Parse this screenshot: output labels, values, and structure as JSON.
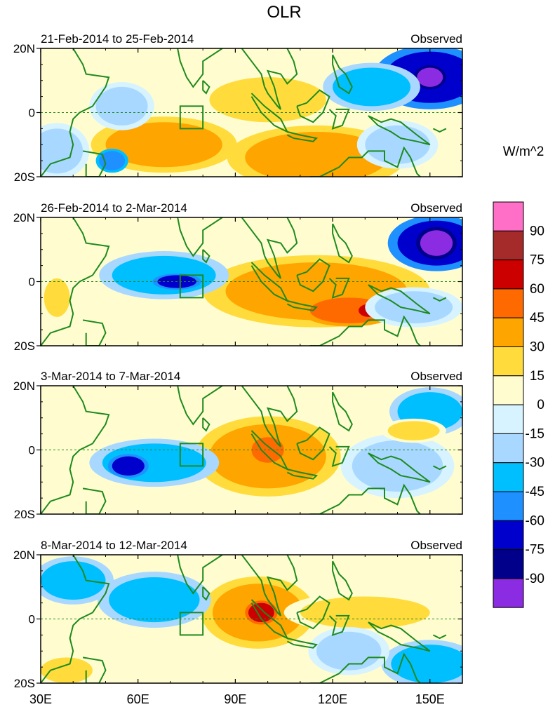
{
  "title": "OLR",
  "colors": {
    "land": "#1e8a1e",
    "levels": [
      "#8b2be2",
      "#00008b",
      "#0000cd",
      "#1e90ff",
      "#00bfff",
      "#a8d8ff",
      "#d6f3ff",
      "#fffdd0",
      "#ffdc3c",
      "#ffa500",
      "#ff6a00",
      "#cd0000",
      "#a52a2a",
      "#ff6ec7"
    ]
  },
  "chart_data": {
    "type": "heatmap",
    "variable": "OLR anomaly",
    "xlim": [
      30,
      160
    ],
    "ylim": [
      -20,
      20
    ],
    "x_ticks": [
      {
        "v": 30,
        "label": "30E"
      },
      {
        "v": 60,
        "label": "60E"
      },
      {
        "v": 90,
        "label": "90E"
      },
      {
        "v": 120,
        "label": "120E"
      },
      {
        "v": 150,
        "label": "150E"
      }
    ],
    "y_ticks": [
      {
        "v": 20,
        "label": "20N"
      },
      {
        "v": 0,
        "label": "0"
      },
      {
        "v": -20,
        "label": "20S"
      }
    ],
    "box": {
      "lon": [
        73,
        80
      ],
      "lat": [
        -5,
        2
      ]
    },
    "colorbar": {
      "units": "W/m^2",
      "levels": [
        -90,
        -75,
        -60,
        -45,
        -30,
        -15,
        0,
        15,
        30,
        45,
        60,
        75,
        90
      ]
    },
    "panels": [
      {
        "left": "21-Feb-2014 to 25-Feb-2014",
        "right": "Observed",
        "anomalies": [
          {
            "lon": 115,
            "lat": -14,
            "rx": 22,
            "ry": 8,
            "v": 40
          },
          {
            "lon": 68,
            "lat": -10,
            "rx": 18,
            "ry": 7,
            "v": 32
          },
          {
            "lon": 100,
            "lat": 4,
            "rx": 18,
            "ry": 7,
            "v": 25
          },
          {
            "lon": 150,
            "lat": 11,
            "rx": 14,
            "ry": 8,
            "v": -65
          },
          {
            "lon": 150,
            "lat": 11,
            "rx": 4,
            "ry": 3,
            "v": -92
          },
          {
            "lon": 132,
            "lat": 8,
            "rx": 12,
            "ry": 6,
            "v": -40
          },
          {
            "lon": 140,
            "lat": -10,
            "rx": 10,
            "ry": 6,
            "v": -30
          },
          {
            "lon": 55,
            "lat": 2,
            "rx": 8,
            "ry": 6,
            "v": -28
          },
          {
            "lon": 35,
            "lat": -12,
            "rx": 8,
            "ry": 7,
            "v": -30
          },
          {
            "lon": 52,
            "lat": -15,
            "rx": 4,
            "ry": 3,
            "v": -55
          }
        ]
      },
      {
        "left": "26-Feb-2014 to 2-Mar-2014",
        "right": "Observed",
        "anomalies": [
          {
            "lon": 115,
            "lat": -3,
            "rx": 28,
            "ry": 9,
            "v": 32
          },
          {
            "lon": 125,
            "lat": -9,
            "rx": 12,
            "ry": 4,
            "v": 52
          },
          {
            "lon": 131,
            "lat": -9,
            "rx": 3,
            "ry": 2,
            "v": 68
          },
          {
            "lon": 152,
            "lat": 12,
            "rx": 12,
            "ry": 7,
            "v": -62
          },
          {
            "lon": 152,
            "lat": 12,
            "rx": 5,
            "ry": 4,
            "v": -92
          },
          {
            "lon": 68,
            "lat": 2,
            "rx": 16,
            "ry": 6,
            "v": -40
          },
          {
            "lon": 72,
            "lat": 0,
            "rx": 6,
            "ry": 2,
            "v": -72
          },
          {
            "lon": 35,
            "lat": -5,
            "rx": 4,
            "ry": 6,
            "v": 28
          },
          {
            "lon": 145,
            "lat": -8,
            "rx": 12,
            "ry": 5,
            "v": -30
          }
        ]
      },
      {
        "left": "3-Mar-2014 to 7-Mar-2014",
        "right": "Observed",
        "anomalies": [
          {
            "lon": 100,
            "lat": -2,
            "rx": 18,
            "ry": 10,
            "v": 32
          },
          {
            "lon": 100,
            "lat": 0,
            "rx": 5,
            "ry": 4,
            "v": 50
          },
          {
            "lon": 65,
            "lat": -4,
            "rx": 16,
            "ry": 6,
            "v": -45
          },
          {
            "lon": 57,
            "lat": -5,
            "rx": 5,
            "ry": 3,
            "v": -70
          },
          {
            "lon": 150,
            "lat": 12,
            "rx": 10,
            "ry": 6,
            "v": -40
          },
          {
            "lon": 140,
            "lat": -5,
            "rx": 14,
            "ry": 8,
            "v": -30
          },
          {
            "lon": 145,
            "lat": 6,
            "rx": 8,
            "ry": 3,
            "v": 28
          }
        ]
      },
      {
        "left": "8-Mar-2014 to 12-Mar-2014",
        "right": "Observed",
        "anomalies": [
          {
            "lon": 97,
            "lat": 2,
            "rx": 14,
            "ry": 9,
            "v": 38
          },
          {
            "lon": 98,
            "lat": 2,
            "rx": 4,
            "ry": 3,
            "v": 62
          },
          {
            "lon": 130,
            "lat": 2,
            "rx": 20,
            "ry": 5,
            "v": 25
          },
          {
            "lon": 65,
            "lat": 6,
            "rx": 14,
            "ry": 7,
            "v": -45
          },
          {
            "lon": 40,
            "lat": 12,
            "rx": 10,
            "ry": 6,
            "v": -35
          },
          {
            "lon": 150,
            "lat": -14,
            "rx": 12,
            "ry": 6,
            "v": -45
          },
          {
            "lon": 38,
            "lat": -16,
            "rx": 8,
            "ry": 4,
            "v": 28
          },
          {
            "lon": 125,
            "lat": -10,
            "rx": 10,
            "ry": 6,
            "v": -28
          }
        ]
      }
    ]
  }
}
